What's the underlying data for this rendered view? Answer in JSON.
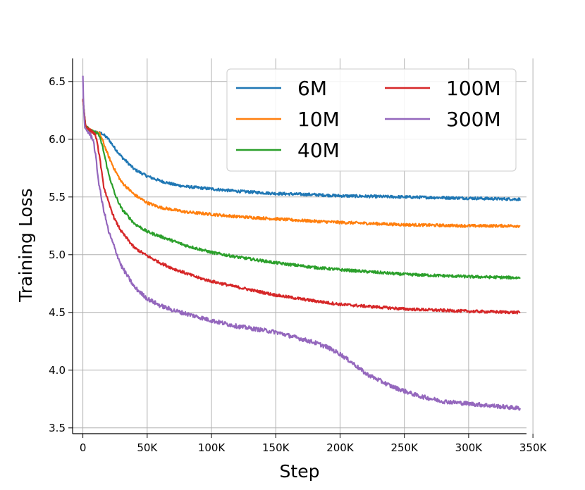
{
  "chart_data": {
    "type": "line",
    "title": "",
    "xlabel": "Step",
    "ylabel": "Training Loss",
    "xlim": [
      -8000,
      345000
    ],
    "ylim": [
      3.45,
      6.7
    ],
    "grid": true,
    "legend_position": "top-right",
    "x_ticks": [
      {
        "value": 0,
        "label": "0"
      },
      {
        "value": 50000,
        "label": "50K"
      },
      {
        "value": 100000,
        "label": "100K"
      },
      {
        "value": 150000,
        "label": "150K"
      },
      {
        "value": 200000,
        "label": "200K"
      },
      {
        "value": 250000,
        "label": "250K"
      },
      {
        "value": 300000,
        "label": "300K"
      },
      {
        "value": 350000,
        "label": "350K"
      }
    ],
    "y_ticks": [
      {
        "value": 3.5,
        "label": "3.5"
      },
      {
        "value": 4.0,
        "label": "4.0"
      },
      {
        "value": 4.5,
        "label": "4.5"
      },
      {
        "value": 5.0,
        "label": "5.0"
      },
      {
        "value": 5.5,
        "label": "5.5"
      },
      {
        "value": 6.0,
        "label": "6.0"
      },
      {
        "value": 6.5,
        "label": "6.5"
      }
    ],
    "series": [
      {
        "name": "6M",
        "color": "#1f77b4",
        "noise": 0.012,
        "x": [
          0,
          2000,
          5000,
          10000,
          15000,
          20000,
          25000,
          30000,
          40000,
          50000,
          60000,
          70000,
          80000,
          100000,
          120000,
          150000,
          180000,
          200000,
          250000,
          300000,
          340000
        ],
        "y": [
          6.35,
          6.12,
          6.08,
          6.06,
          6.05,
          6.0,
          5.92,
          5.85,
          5.74,
          5.68,
          5.64,
          5.61,
          5.59,
          5.57,
          5.55,
          5.53,
          5.52,
          5.51,
          5.5,
          5.49,
          5.48
        ]
      },
      {
        "name": "10M",
        "color": "#ff7f0e",
        "noise": 0.012,
        "x": [
          0,
          2000,
          5000,
          10000,
          13000,
          15000,
          20000,
          25000,
          30000,
          40000,
          50000,
          60000,
          70000,
          80000,
          100000,
          120000,
          150000,
          180000,
          200000,
          250000,
          300000,
          340000
        ],
        "y": [
          6.35,
          6.12,
          6.08,
          6.06,
          6.05,
          6.0,
          5.85,
          5.73,
          5.63,
          5.52,
          5.45,
          5.41,
          5.39,
          5.37,
          5.35,
          5.33,
          5.31,
          5.29,
          5.28,
          5.26,
          5.25,
          5.25
        ]
      },
      {
        "name": "40M",
        "color": "#2ca02c",
        "noise": 0.012,
        "x": [
          0,
          2000,
          5000,
          9000,
          12000,
          15000,
          20000,
          25000,
          30000,
          40000,
          50000,
          60000,
          70000,
          80000,
          90000,
          100000,
          120000,
          150000,
          180000,
          200000,
          250000,
          300000,
          340000
        ],
        "y": [
          6.35,
          6.12,
          6.08,
          6.06,
          6.05,
          5.95,
          5.7,
          5.52,
          5.4,
          5.27,
          5.2,
          5.16,
          5.12,
          5.08,
          5.05,
          5.02,
          4.98,
          4.93,
          4.89,
          4.87,
          4.83,
          4.81,
          4.8
        ]
      },
      {
        "name": "100M",
        "color": "#d62728",
        "noise": 0.012,
        "x": [
          0,
          2000,
          5000,
          8000,
          10000,
          13000,
          16000,
          20000,
          25000,
          30000,
          40000,
          50000,
          60000,
          70000,
          80000,
          90000,
          100000,
          120000,
          150000,
          180000,
          200000,
          250000,
          300000,
          340000
        ],
        "y": [
          6.35,
          6.12,
          6.08,
          6.06,
          6.03,
          5.85,
          5.6,
          5.45,
          5.3,
          5.2,
          5.06,
          4.99,
          4.93,
          4.88,
          4.84,
          4.8,
          4.77,
          4.72,
          4.65,
          4.6,
          4.57,
          4.53,
          4.51,
          4.5
        ]
      },
      {
        "name": "300M",
        "color": "#9467bd",
        "noise": 0.018,
        "x": [
          0,
          500,
          1500,
          3000,
          5000,
          8000,
          10000,
          12000,
          15000,
          20000,
          25000,
          30000,
          40000,
          50000,
          60000,
          70000,
          80000,
          90000,
          100000,
          120000,
          150000,
          170000,
          180000,
          190000,
          200000,
          210000,
          220000,
          240000,
          260000,
          280000,
          300000,
          320000,
          340000
        ],
        "y": [
          6.55,
          6.3,
          6.1,
          6.08,
          6.05,
          6.0,
          5.85,
          5.65,
          5.45,
          5.2,
          5.05,
          4.9,
          4.72,
          4.62,
          4.56,
          4.52,
          4.49,
          4.46,
          4.43,
          4.38,
          4.33,
          4.27,
          4.24,
          4.2,
          4.14,
          4.06,
          3.97,
          3.86,
          3.78,
          3.73,
          3.71,
          3.69,
          3.67
        ]
      }
    ]
  }
}
